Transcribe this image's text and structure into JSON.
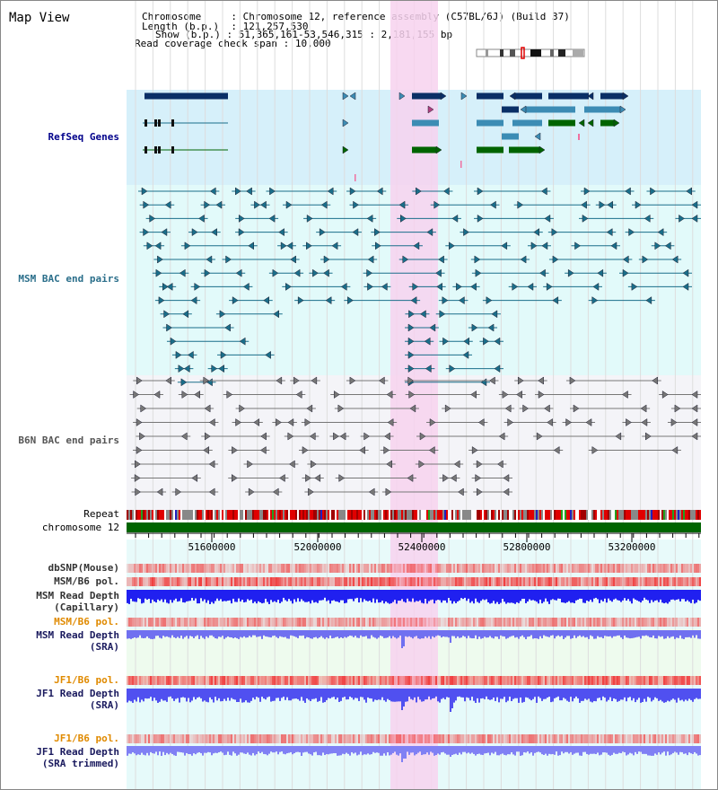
{
  "title": "Map View",
  "info": {
    "chromosome_label": "Chromosome",
    "chromosome_value": "Chromosome 12, reference assembly (C57BL/6J) (Build 37)",
    "length_label": "Length (b.p.)",
    "length_value": "121,257,530",
    "show_label": "Show (b.p.)",
    "show_value": "51,365,161-53,546,315 : 2,181,155 bp",
    "span_label": "Read coverage check span",
    "span_value": "10,000"
  },
  "tracks": {
    "refseq": "RefSeq Genes",
    "msm_bac": "MSM BAC end pairs",
    "b6n_bac": "B6N BAC end pairs",
    "repeat": "Repeat",
    "chromosome": "chromosome 12",
    "dbsnp": "dbSNP(Mouse)",
    "msm_b6_pol_1": "MSM/B6 pol.",
    "msm_read_depth_cap_1": "MSM Read Depth",
    "msm_read_depth_cap_2": "(Capillary)",
    "msm_b6_pol_2": "MSM/B6 pol.",
    "msm_read_depth_sra_1": "MSM Read Depth",
    "msm_read_depth_sra_2": "(SRA)",
    "jf1_b6_pol_1": "JF1/B6 pol.",
    "jf1_read_depth_sra_1": "JF1 Read Depth",
    "jf1_read_depth_sra_2": "(SRA)",
    "jf1_b6_pol_2": "JF1/B6 pol.",
    "jf1_read_depth_trim_1": "JF1 Read Depth",
    "jf1_read_depth_trim_2": "(SRA trimmed)"
  },
  "axis": {
    "ticks": [
      "51600000",
      "52000000",
      "52400000",
      "52800000",
      "53200000"
    ]
  },
  "colors": {
    "refseq_bg": "#d6f0fa",
    "msm_bac_bg": "#e2fafa",
    "b6n_bac_bg": "#f4f4f8",
    "highlight": "#f7d2ef",
    "chromosome_bar": "#006400",
    "gene_dark": "#0a2f66",
    "gene_mid": "#3c8cb4",
    "gene_green": "#006400",
    "bac_teal": "#1a6e8a",
    "bac_gray": "#777777",
    "depth_blue": "#2020f0",
    "depth_light": "#7070f0",
    "pol_red": "#f04040"
  }
}
